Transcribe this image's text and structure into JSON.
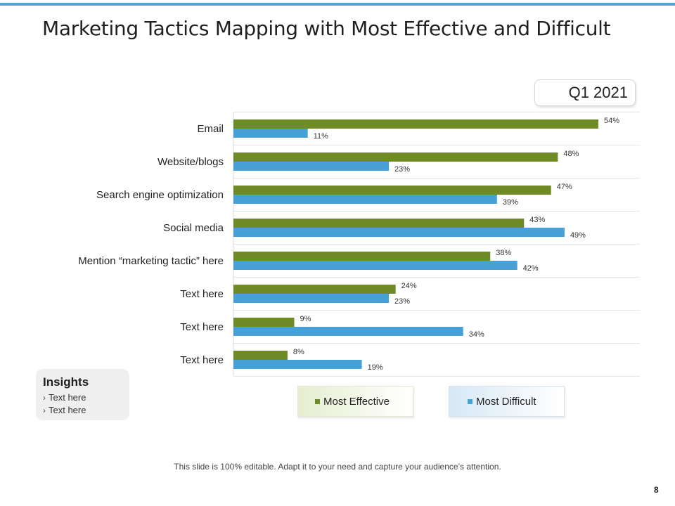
{
  "slide": {
    "title": "Marketing Tactics Mapping with Most Effective and Difficult",
    "quarter": "Q1 2021",
    "footer": "This slide is 100% editable. Adapt it to your need and capture your audience’s attention.",
    "page_number": "8"
  },
  "insights": {
    "title": "Insights",
    "items": [
      "Text here",
      "Text here"
    ]
  },
  "colors": {
    "accent": "#4da3d5",
    "most_effective": "#6e8b26",
    "most_difficult": "#47a1d6"
  },
  "chart_data": {
    "type": "bar",
    "orientation": "horizontal",
    "categories": [
      "Email",
      "Website/blogs",
      "Search engine optimization",
      "Social media",
      "Mention “marketing tactic” here",
      "Text here",
      "Text here",
      "Text here"
    ],
    "series": [
      {
        "name": "Most Effective",
        "values": [
          54,
          48,
          47,
          43,
          38,
          24,
          9,
          8
        ],
        "color": "#6e8b26"
      },
      {
        "name": "Most Difficult",
        "values": [
          11,
          23,
          39,
          49,
          42,
          23,
          34,
          19
        ],
        "color": "#47a1d6"
      }
    ],
    "value_suffix": "%",
    "xlim": [
      0,
      60
    ],
    "grid": true,
    "legend_position": "bottom"
  }
}
